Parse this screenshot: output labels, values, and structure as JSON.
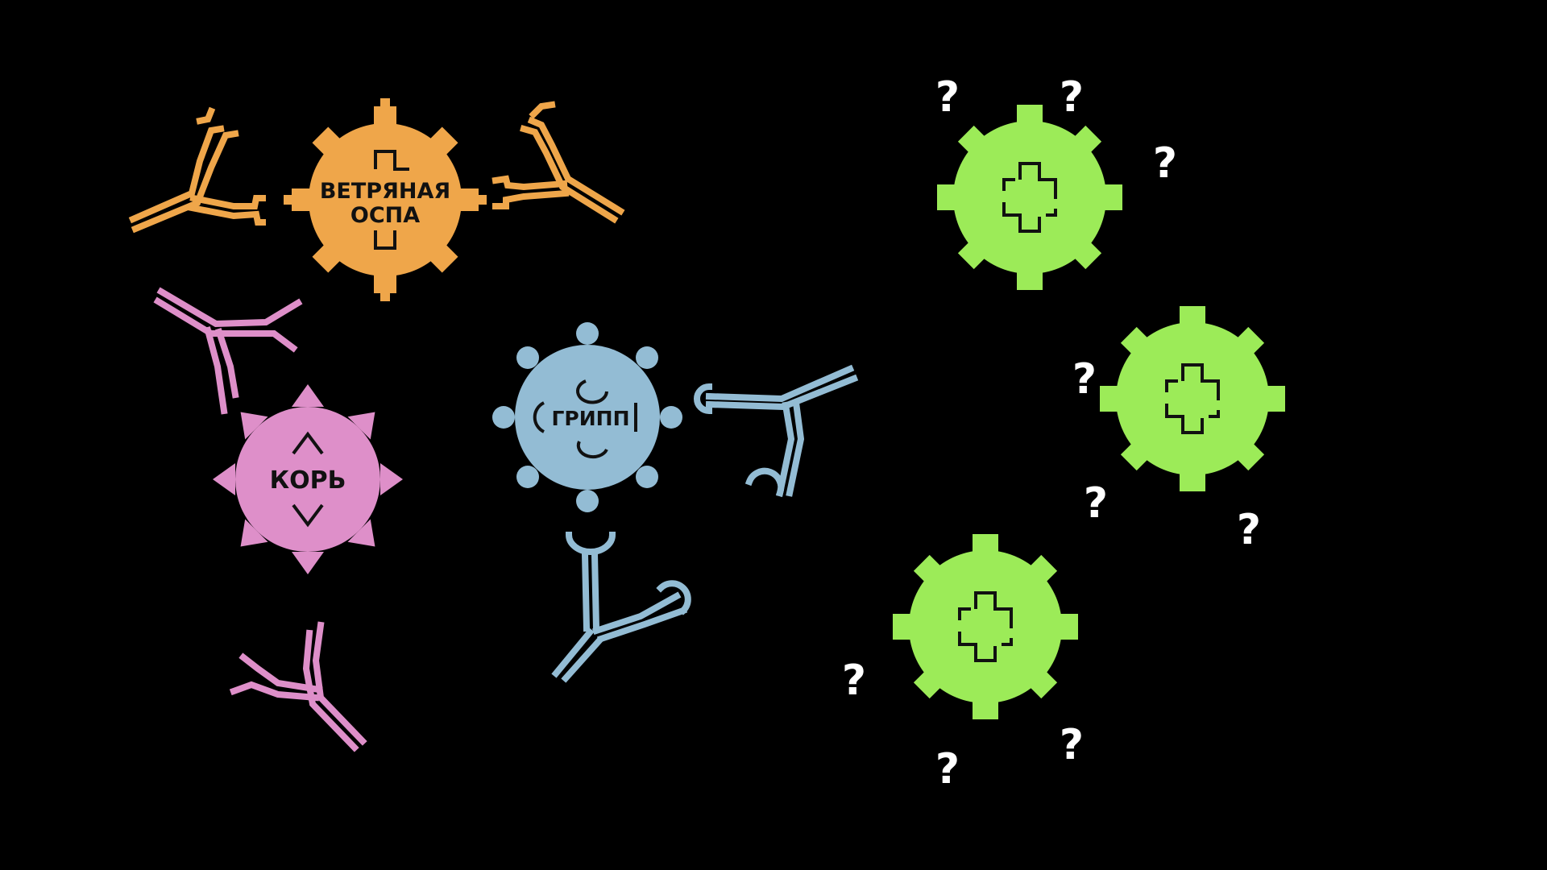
{
  "colors": {
    "background": "#000000",
    "chickenpox": "#EFA64A",
    "measles": "#DE8FC9",
    "flu": "#93BCD4",
    "unknown": "#9CEB58",
    "question": "#FFFFFF",
    "ink": "#111111"
  },
  "viruses": {
    "chickenpox": {
      "line1": "ВЕТРЯНАЯ",
      "line2": "ОСПА"
    },
    "measles": {
      "label": "КОРЬ"
    },
    "flu": {
      "label": "ГРИПП"
    },
    "unknown": {
      "count": 3
    }
  },
  "question_mark": "?",
  "question_count": 9
}
